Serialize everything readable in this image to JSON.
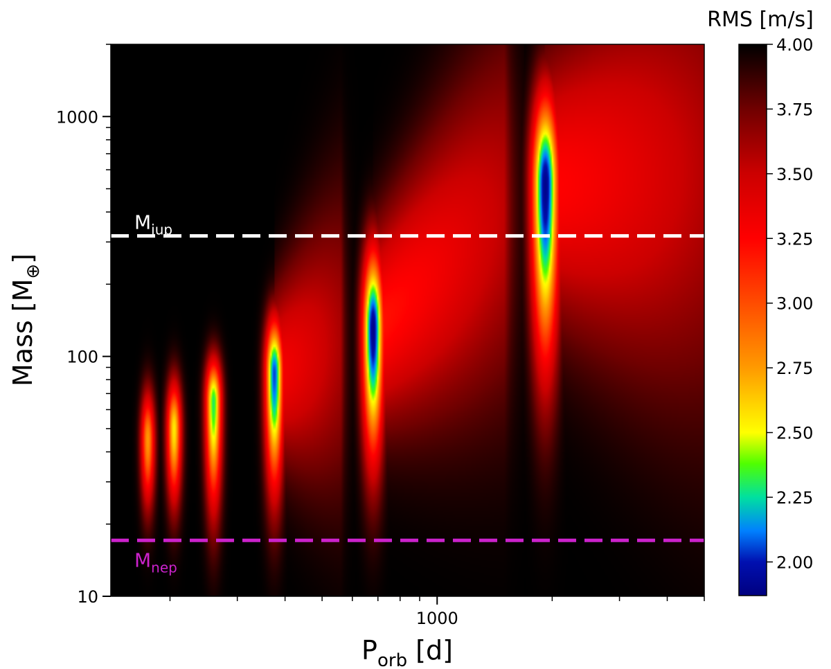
{
  "chart_data": {
    "type": "heatmap",
    "title": "",
    "xlabel": {
      "main": "P",
      "sub": "orb",
      "unit": " [d]"
    },
    "ylabel": {
      "main": "Mass [M",
      "sub": "⊕",
      "close": "]"
    },
    "x_scale": "log",
    "y_scale": "log",
    "xlim": [
      140,
      5000
    ],
    "ylim": [
      10,
      2000
    ],
    "x_tick_labels": [
      {
        "value": 1000,
        "label": "1000"
      }
    ],
    "x_minor_ticks": [
      200,
      300,
      400,
      500,
      600,
      700,
      800,
      900,
      2000,
      3000,
      4000,
      5000
    ],
    "y_tick_labels": [
      {
        "value": 10,
        "label": "10"
      },
      {
        "value": 100,
        "label": "100"
      },
      {
        "value": 1000,
        "label": "1000"
      }
    ],
    "y_minor_ticks": [
      20,
      30,
      40,
      50,
      60,
      70,
      80,
      90,
      200,
      300,
      400,
      500,
      600,
      700,
      800,
      900,
      2000
    ],
    "background_value": 4.0,
    "colorbar": {
      "label": "RMS [m/s]",
      "range": [
        1.87,
        4.0
      ],
      "ticks": [
        "2.00",
        "2.25",
        "2.50",
        "2.75",
        "3.00",
        "3.25",
        "3.50",
        "3.75",
        "4.00"
      ],
      "tick_values": [
        2.0,
        2.25,
        2.5,
        2.75,
        3.0,
        3.25,
        3.5,
        3.75,
        4.0
      ],
      "colormap": [
        {
          "v": 1.87,
          "color": "#000080"
        },
        {
          "v": 2.0,
          "color": "#0010b0"
        },
        {
          "v": 2.12,
          "color": "#0080ff"
        },
        {
          "v": 2.25,
          "color": "#00e0a0"
        },
        {
          "v": 2.38,
          "color": "#50ff00"
        },
        {
          "v": 2.5,
          "color": "#ffff00"
        },
        {
          "v": 2.75,
          "color": "#ff9a00"
        },
        {
          "v": 3.0,
          "color": "#ff4c00"
        },
        {
          "v": 3.25,
          "color": "#ff0000"
        },
        {
          "v": 3.5,
          "color": "#cc0000"
        },
        {
          "v": 3.75,
          "color": "#700000"
        },
        {
          "v": 4.0,
          "color": "#000000"
        }
      ]
    },
    "blobs": [
      {
        "period": 175,
        "mass_center": 45,
        "mass_low": 17,
        "mass_high": 90,
        "min_rms": 2.75,
        "tail": null
      },
      {
        "period": 205,
        "mass_center": 50,
        "mass_low": 17,
        "mass_high": 100,
        "min_rms": 2.55,
        "tail": null
      },
      {
        "period": 260,
        "mass_center": 65,
        "mass_low": 14,
        "mass_high": 120,
        "min_rms": 2.3,
        "tail": null
      },
      {
        "period": 375,
        "mass_center": 85,
        "mass_low": 16,
        "mass_high": 190,
        "min_rms": 2.05,
        "tail": {
          "period": 560,
          "mass": 120,
          "min_rms": 3.3
        }
      },
      {
        "period": 680,
        "mass_center": 130,
        "mass_low": 20,
        "mass_high": 420,
        "min_rms": 1.9,
        "tail": {
          "period": 1500,
          "mass": 450,
          "min_rms": 3.2
        }
      },
      {
        "period": 1920,
        "mass_center": 520,
        "mass_low": 40,
        "mass_high": 1950,
        "min_rms": 1.9,
        "tail": {
          "period": 5000,
          "mass": 600,
          "min_rms": 3.25
        }
      }
    ],
    "reference_lines": [
      {
        "name": "M",
        "sub": "jup",
        "mass": 318,
        "color": "#ffffff",
        "label_position": "above-left"
      },
      {
        "name": "M",
        "sub": "nep",
        "mass": 17.1,
        "color": "#cc22cc",
        "label_position": "below-left"
      }
    ]
  }
}
